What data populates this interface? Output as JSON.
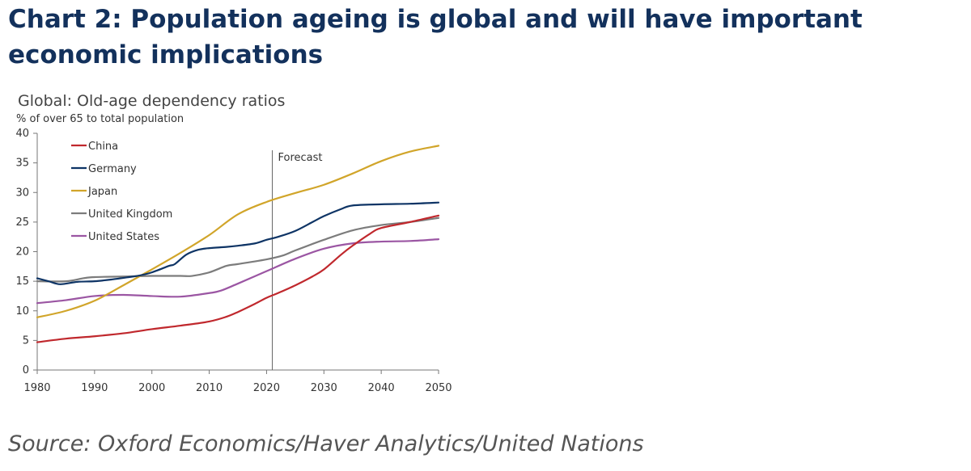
{
  "header": {
    "title": "Chart 2: Population ageing is global and will have important economic implications"
  },
  "footer": {
    "source": "Source: Oxford Economics/Haver Analytics/United Nations"
  },
  "chart_data": {
    "type": "line",
    "title": "Global: Old-age dependency ratios",
    "ylabel": "% of over 65 to total population",
    "xlabel": "",
    "xlim": [
      1980,
      2050
    ],
    "ylim": [
      0,
      40
    ],
    "x_ticks": [
      1980,
      1990,
      2000,
      2010,
      2020,
      2030,
      2040,
      2050
    ],
    "y_ticks": [
      0,
      5,
      10,
      15,
      20,
      25,
      30,
      35,
      40
    ],
    "grid": false,
    "legend_position": "top-left",
    "annotation": {
      "label": "Forecast",
      "x": 2021
    },
    "series": [
      {
        "name": "China",
        "color": "#c0282d",
        "points": [
          [
            1980,
            4.7
          ],
          [
            1985,
            5.3
          ],
          [
            1990,
            5.7
          ],
          [
            1995,
            6.2
          ],
          [
            2000,
            6.9
          ],
          [
            2005,
            7.5
          ],
          [
            2010,
            8.2
          ],
          [
            2013,
            9.0
          ],
          [
            2015,
            9.8
          ],
          [
            2018,
            11.2
          ],
          [
            2020,
            12.2
          ],
          [
            2022,
            13.0
          ],
          [
            2025,
            14.3
          ],
          [
            2028,
            15.8
          ],
          [
            2030,
            17.0
          ],
          [
            2033,
            19.5
          ],
          [
            2035,
            21.0
          ],
          [
            2038,
            23.0
          ],
          [
            2040,
            24.0
          ],
          [
            2045,
            25.0
          ],
          [
            2050,
            26.1
          ]
        ]
      },
      {
        "name": "Germany",
        "color": "#0e3465",
        "points": [
          [
            1980,
            15.5
          ],
          [
            1982,
            15.0
          ],
          [
            1984,
            14.5
          ],
          [
            1987,
            14.9
          ],
          [
            1990,
            15.0
          ],
          [
            1993,
            15.3
          ],
          [
            1996,
            15.7
          ],
          [
            1998,
            16.0
          ],
          [
            2000,
            16.5
          ],
          [
            2003,
            17.6
          ],
          [
            2004,
            17.9
          ],
          [
            2006,
            19.5
          ],
          [
            2008,
            20.3
          ],
          [
            2010,
            20.6
          ],
          [
            2013,
            20.8
          ],
          [
            2015,
            21.0
          ],
          [
            2018,
            21.4
          ],
          [
            2020,
            22.0
          ],
          [
            2022,
            22.5
          ],
          [
            2025,
            23.5
          ],
          [
            2028,
            25.0
          ],
          [
            2030,
            26.0
          ],
          [
            2033,
            27.2
          ],
          [
            2035,
            27.8
          ],
          [
            2040,
            28.0
          ],
          [
            2045,
            28.1
          ],
          [
            2050,
            28.3
          ]
        ]
      },
      {
        "name": "Japan",
        "color": "#d1a52a",
        "points": [
          [
            1980,
            8.9
          ],
          [
            1985,
            10.0
          ],
          [
            1990,
            11.7
          ],
          [
            1995,
            14.3
          ],
          [
            2000,
            17.0
          ],
          [
            2005,
            19.8
          ],
          [
            2010,
            22.8
          ],
          [
            2015,
            26.3
          ],
          [
            2020,
            28.4
          ],
          [
            2025,
            29.9
          ],
          [
            2030,
            31.3
          ],
          [
            2035,
            33.2
          ],
          [
            2040,
            35.3
          ],
          [
            2045,
            36.9
          ],
          [
            2050,
            37.9
          ]
        ]
      },
      {
        "name": "United Kingdom",
        "color": "#7c7c7c",
        "points": [
          [
            1980,
            15.0
          ],
          [
            1985,
            15.0
          ],
          [
            1988,
            15.5
          ],
          [
            1990,
            15.7
          ],
          [
            1995,
            15.8
          ],
          [
            2000,
            15.9
          ],
          [
            2005,
            15.9
          ],
          [
            2007,
            15.9
          ],
          [
            2010,
            16.5
          ],
          [
            2013,
            17.6
          ],
          [
            2015,
            17.9
          ],
          [
            2020,
            18.7
          ],
          [
            2023,
            19.4
          ],
          [
            2025,
            20.2
          ],
          [
            2030,
            22.0
          ],
          [
            2035,
            23.6
          ],
          [
            2040,
            24.5
          ],
          [
            2045,
            25.0
          ],
          [
            2050,
            25.7
          ]
        ]
      },
      {
        "name": "United States",
        "color": "#9b56a3",
        "points": [
          [
            1980,
            11.3
          ],
          [
            1985,
            11.8
          ],
          [
            1990,
            12.5
          ],
          [
            1995,
            12.7
          ],
          [
            2000,
            12.5
          ],
          [
            2005,
            12.4
          ],
          [
            2010,
            13.0
          ],
          [
            2012,
            13.4
          ],
          [
            2015,
            14.6
          ],
          [
            2020,
            16.7
          ],
          [
            2025,
            18.8
          ],
          [
            2030,
            20.5
          ],
          [
            2035,
            21.4
          ],
          [
            2040,
            21.7
          ],
          [
            2045,
            21.8
          ],
          [
            2050,
            22.1
          ]
        ]
      }
    ]
  }
}
